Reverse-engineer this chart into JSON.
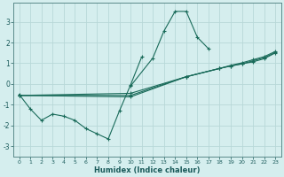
{
  "xlabel": "Humidex (Indice chaleur)",
  "background_color": "#d5eeee",
  "grid_color": "#b8d8d8",
  "line_color": "#1a6b5a",
  "ylim": [
    -3.5,
    3.9
  ],
  "xlim": [
    -0.5,
    23.5
  ],
  "yticks": [
    -3,
    -2,
    -1,
    0,
    1,
    2,
    3
  ],
  "xticks": [
    0,
    1,
    2,
    3,
    4,
    5,
    6,
    7,
    8,
    9,
    10,
    11,
    12,
    13,
    14,
    15,
    16,
    17,
    18,
    19,
    20,
    21,
    22,
    23
  ],
  "lines": [
    {
      "x": [
        0,
        1,
        2,
        3,
        4,
        5,
        6,
        7,
        8,
        9,
        10,
        11
      ],
      "y": [
        -0.5,
        -1.2,
        -1.75,
        -1.45,
        -1.55,
        -1.75,
        -2.15,
        -2.4,
        -2.65,
        -1.3,
        -0.05,
        1.3
      ]
    },
    {
      "x": [
        10,
        12,
        13,
        14,
        15,
        16,
        17
      ],
      "y": [
        -0.1,
        1.25,
        2.55,
        3.5,
        3.5,
        2.25,
        1.7
      ]
    },
    {
      "x": [
        0,
        10,
        15,
        18,
        19,
        20,
        21,
        22,
        23
      ],
      "y": [
        -0.55,
        -0.45,
        0.35,
        0.75,
        0.87,
        0.97,
        1.07,
        1.22,
        1.5
      ]
    },
    {
      "x": [
        0,
        10,
        15,
        18,
        19,
        20,
        21,
        22,
        23
      ],
      "y": [
        -0.55,
        -0.55,
        0.35,
        0.75,
        0.87,
        0.97,
        1.12,
        1.27,
        1.52
      ]
    },
    {
      "x": [
        0,
        10,
        15,
        18,
        19,
        20,
        21,
        22,
        23
      ],
      "y": [
        -0.55,
        -0.62,
        0.35,
        0.75,
        0.9,
        1.02,
        1.17,
        1.32,
        1.57
      ]
    }
  ]
}
